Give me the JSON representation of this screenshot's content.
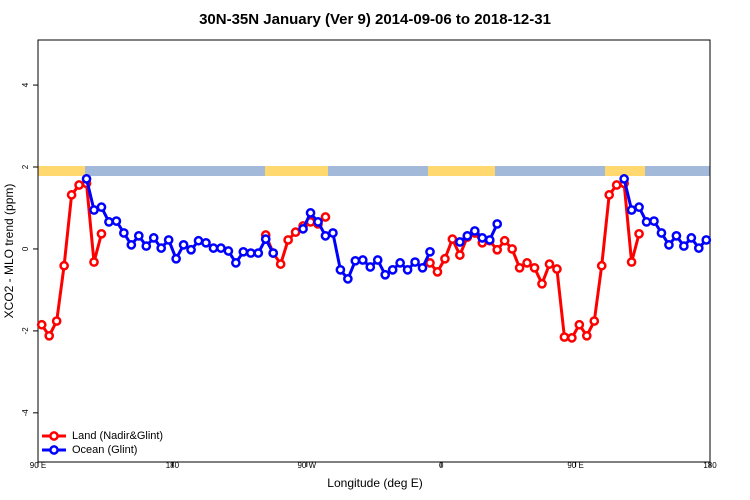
{
  "chart_data": {
    "type": "line",
    "title": "30N-35N January (Ver 9)   2014-09-06 to 2018-12-31",
    "xlabel": "Longitude (deg E)",
    "ylabel": "XCO2 - MLO trend (ppm)",
    "xlim": [
      90,
      540
    ],
    "ylim": [
      -5.2,
      5.1
    ],
    "xticks": [
      {
        "value": 90,
        "label": "90 E"
      },
      180,
      {
        "value": 270,
        "label": "90 W"
      },
      {
        "value": 360,
        "label": "0"
      },
      {
        "value": 450,
        "label": "90 E"
      },
      {
        "value": 540,
        "label": "180"
      }
    ],
    "yticks": [
      -4,
      -2,
      0,
      2,
      4
    ],
    "legend": "bottom-left",
    "x": [
      92.5,
      97.5,
      102.5,
      107.5,
      112.5,
      117.5,
      122.5,
      127.5,
      132.5,
      137.5,
      142.5,
      147.5,
      152.5,
      157.5,
      162.5,
      167.5,
      172.5,
      177.5,
      182.5,
      187.5,
      192.5,
      197.5,
      202.5,
      207.5,
      212.5,
      217.5,
      222.5,
      227.5,
      232.5,
      237.5,
      242.5,
      247.5,
      252.5,
      257.5,
      262.5,
      267.5,
      272.5,
      277.5,
      282.5,
      287.5,
      292.5,
      297.5,
      302.5,
      307.5,
      312.5,
      317.5,
      322.5,
      327.5,
      332.5,
      337.5,
      342.5,
      347.5,
      352.5,
      357.5,
      362.5,
      367.5,
      372.5,
      377.5,
      382.5,
      387.5,
      392.5,
      397.5,
      402.5,
      407.5,
      412.5,
      417.5,
      422.5,
      427.5,
      432.5,
      437.5,
      442.5,
      447.5,
      452.5,
      457.5,
      462.5,
      467.5,
      472.5,
      477.5,
      482.5,
      487.5,
      492.5,
      497.5,
      502.5,
      507.5,
      512.5,
      517.5,
      522.5,
      527.5,
      532.5,
      537.5
    ],
    "series": [
      {
        "name": "Land (Nadir&Glint)",
        "color": "#ff0000",
        "values": [
          -1.85,
          -2.12,
          -1.76,
          -0.41,
          1.32,
          1.56,
          1.6,
          -0.32,
          0.37,
          null,
          null,
          null,
          null,
          null,
          null,
          null,
          null,
          null,
          null,
          null,
          null,
          null,
          null,
          null,
          null,
          null,
          null,
          null,
          null,
          null,
          0.34,
          -0.1,
          -0.37,
          0.22,
          0.41,
          0.56,
          0.66,
          0.61,
          0.78,
          null,
          null,
          null,
          null,
          null,
          null,
          null,
          null,
          null,
          null,
          null,
          null,
          null,
          -0.34,
          -0.56,
          -0.24,
          0.24,
          -0.15,
          0.29,
          0.39,
          0.15,
          0.2,
          -0.02,
          0.2,
          0,
          -0.46,
          -0.34,
          -0.46,
          -0.85,
          -0.37,
          -0.49,
          -2.15,
          -2.17,
          -1.85,
          -2.12,
          -1.76,
          -0.41,
          1.32,
          1.56,
          1.6,
          -0.32,
          0.37,
          null,
          null,
          null,
          null,
          null,
          null,
          null,
          null,
          null
        ]
      },
      {
        "name": "Ocean (Glint)",
        "color": "#0000ff",
        "values": [
          null,
          null,
          null,
          null,
          null,
          null,
          1.71,
          0.95,
          1.02,
          0.66,
          0.68,
          0.39,
          0.1,
          0.32,
          0.07,
          0.27,
          0.02,
          0.22,
          -0.24,
          0.1,
          -0.02,
          0.2,
          0.15,
          0.02,
          0.02,
          -0.05,
          -0.34,
          -0.07,
          -0.1,
          -0.1,
          0.24,
          -0.1,
          null,
          null,
          null,
          0.49,
          0.88,
          0.66,
          0.32,
          0.39,
          -0.51,
          -0.73,
          -0.29,
          -0.27,
          -0.44,
          -0.27,
          -0.63,
          -0.51,
          -0.34,
          -0.51,
          -0.32,
          -0.46,
          -0.07,
          null,
          null,
          null,
          0.17,
          0.32,
          0.44,
          0.27,
          0.22,
          0.61,
          null,
          null,
          null,
          null,
          null,
          null,
          null,
          null,
          null,
          null,
          null,
          null,
          null,
          null,
          null,
          null,
          1.71,
          0.95,
          1.02,
          0.66,
          0.68,
          0.39,
          0.1,
          0.32,
          0.07,
          0.27,
          0.02,
          0.22
        ]
      }
    ]
  }
}
